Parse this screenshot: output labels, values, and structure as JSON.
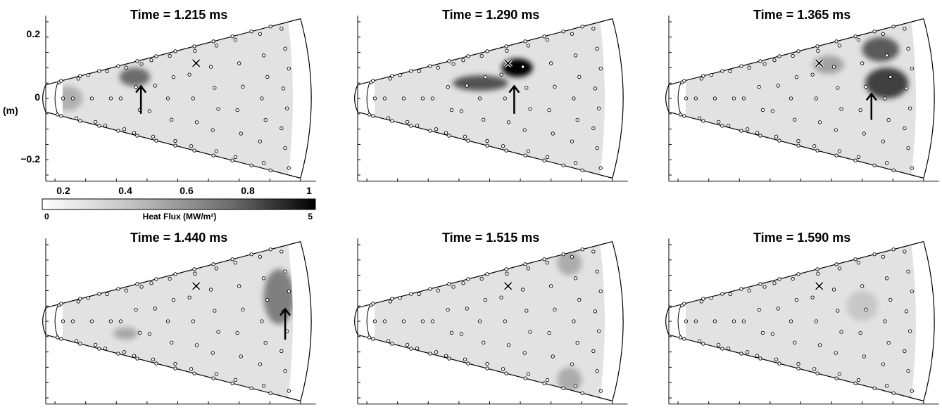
{
  "figure": {
    "unit_label": "(m)",
    "colorbar": {
      "label": "Heat Flux (MW/m²)",
      "min": 0,
      "max": 5,
      "min_label": "0",
      "max_label": "5",
      "scheme": "white-to-black"
    },
    "x_ticks": [
      "0.2",
      "0.4",
      "0.6",
      "0.8",
      "1"
    ],
    "y_ticks": [
      "0.2",
      "0",
      "−0.2"
    ]
  },
  "chart_data": [
    {
      "type": "heatmap",
      "title": "Time = 1.215 ms",
      "xlim": [
        0.17,
        1.05
      ],
      "ylim": [
        -0.27,
        0.27
      ],
      "hotspots": [
        {
          "x": 0.46,
          "y": 0.07,
          "sx": 0.05,
          "sy": 0.03,
          "value": 2.6
        },
        {
          "x": 0.24,
          "y": 0.0,
          "sx": 0.05,
          "sy": 0.04,
          "value": 1.1
        }
      ],
      "cross": {
        "x": 0.66,
        "y": 0.115
      },
      "arrow": {
        "x": 0.48,
        "y_from": -0.05,
        "y_to": 0.04
      }
    },
    {
      "type": "heatmap",
      "title": "Time = 1.290 ms",
      "xlim": [
        0.17,
        1.05
      ],
      "ylim": [
        -0.27,
        0.27
      ],
      "hotspots": [
        {
          "x": 0.69,
          "y": 0.1,
          "sx": 0.05,
          "sy": 0.03,
          "value": 5.0
        },
        {
          "x": 0.57,
          "y": 0.05,
          "sx": 0.09,
          "sy": 0.025,
          "value": 3.2
        }
      ],
      "cross": {
        "x": 0.66,
        "y": 0.115
      },
      "arrow": {
        "x": 0.68,
        "y_from": -0.05,
        "y_to": 0.04
      }
    },
    {
      "type": "heatmap",
      "title": "Time = 1.365 ms",
      "xlim": [
        0.17,
        1.05
      ],
      "ylim": [
        -0.27,
        0.27
      ],
      "hotspots": [
        {
          "x": 0.88,
          "y": 0.05,
          "sx": 0.07,
          "sy": 0.05,
          "value": 3.6
        },
        {
          "x": 0.86,
          "y": 0.16,
          "sx": 0.06,
          "sy": 0.04,
          "value": 3.0
        },
        {
          "x": 0.69,
          "y": 0.11,
          "sx": 0.05,
          "sy": 0.03,
          "value": 1.4
        }
      ],
      "cross": {
        "x": 0.66,
        "y": 0.115
      },
      "arrow": {
        "x": 0.83,
        "y_from": -0.07,
        "y_to": 0.015
      }
    },
    {
      "type": "heatmap",
      "title": "Time = 1.440 ms",
      "xlim": [
        0.17,
        1.05
      ],
      "ylim": [
        -0.27,
        0.27
      ],
      "hotspots": [
        {
          "x": 0.93,
          "y": 0.08,
          "sx": 0.05,
          "sy": 0.09,
          "value": 2.2
        },
        {
          "x": 0.43,
          "y": -0.04,
          "sx": 0.04,
          "sy": 0.02,
          "value": 1.3
        }
      ],
      "cross": {
        "x": 0.66,
        "y": 0.115
      },
      "arrow": {
        "x": 0.95,
        "y_from": -0.06,
        "y_to": 0.04
      }
    },
    {
      "type": "heatmap",
      "title": "Time = 1.515 ms",
      "xlim": [
        0.17,
        1.05
      ],
      "ylim": [
        -0.27,
        0.27
      ],
      "hotspots": [
        {
          "x": 0.86,
          "y": 0.19,
          "sx": 0.04,
          "sy": 0.04,
          "value": 1.2
        },
        {
          "x": 0.86,
          "y": -0.19,
          "sx": 0.04,
          "sy": 0.04,
          "value": 1.2
        }
      ],
      "cross": {
        "x": 0.66,
        "y": 0.115
      }
    },
    {
      "type": "heatmap",
      "title": "Time = 1.590 ms",
      "xlim": [
        0.17,
        1.05
      ],
      "ylim": [
        -0.27,
        0.27
      ],
      "hotspots": [
        {
          "x": 0.8,
          "y": 0.05,
          "sx": 0.05,
          "sy": 0.05,
          "value": 0.6
        }
      ],
      "cross": {
        "x": 0.66,
        "y": 0.115
      }
    }
  ]
}
